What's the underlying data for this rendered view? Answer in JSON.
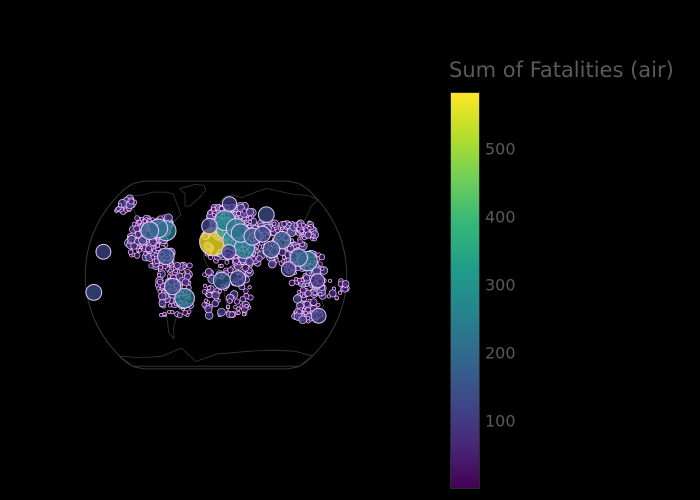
{
  "colorbar": {
    "title": "Sum of Fatalities (air)",
    "min": 0,
    "max": 583,
    "ticks": [
      "100",
      "200",
      "300",
      "400",
      "500"
    ],
    "colorscale": [
      "#440154",
      "#482878",
      "#3e4989",
      "#31688e",
      "#26828e",
      "#1f9e89",
      "#35b779",
      "#6ece58",
      "#b5de2b",
      "#fde725"
    ]
  },
  "map": {
    "projection": "natural earth",
    "background": "#000000",
    "coastline_color": "#444444",
    "marker_outline": "#e6c8ff"
  },
  "chart_data": {
    "type": "scatter",
    "projection": "natural earth",
    "size_and_color": "Sum of Fatalities (air)",
    "points": [
      {
        "lon": -3.5,
        "lat": 28.5,
        "value": 583
      },
      {
        "lon": 25,
        "lat": 30,
        "value": 290
      },
      {
        "lon": 16,
        "lat": 40,
        "value": 305
      },
      {
        "lon": 14,
        "lat": 47,
        "value": 270
      },
      {
        "lon": 40,
        "lat": 23,
        "value": 265
      },
      {
        "lon": 30,
        "lat": 40,
        "value": 240
      },
      {
        "lon": 36,
        "lat": 36,
        "value": 210
      },
      {
        "lon": -74,
        "lat": 38,
        "value": 260
      },
      {
        "lon": -86,
        "lat": 40,
        "value": 215
      },
      {
        "lon": -98,
        "lat": 38,
        "value": 185
      },
      {
        "lon": -44,
        "lat": -20,
        "value": 245
      },
      {
        "lon": -60,
        "lat": -10,
        "value": 150
      },
      {
        "lon": -70,
        "lat": 16,
        "value": 160
      },
      {
        "lon": -170,
        "lat": -15,
        "value": 140
      },
      {
        "lon": -158,
        "lat": 20,
        "value": 120
      },
      {
        "lon": 127,
        "lat": 12,
        "value": 240
      },
      {
        "lon": 95,
        "lat": 30,
        "value": 175
      },
      {
        "lon": 115,
        "lat": 15,
        "value": 180
      },
      {
        "lon": 78,
        "lat": 22,
        "value": 160
      },
      {
        "lon": 68,
        "lat": 35,
        "value": 140
      },
      {
        "lon": 53,
        "lat": 33,
        "value": 170
      },
      {
        "lon": 80,
        "lat": 52,
        "value": 140
      },
      {
        "lon": 8,
        "lat": -5,
        "value": 170
      },
      {
        "lon": 30,
        "lat": -3,
        "value": 135
      },
      {
        "lon": -10,
        "lat": 42,
        "value": 130
      },
      {
        "lon": 23,
        "lat": 62,
        "value": 110
      },
      {
        "lon": 150,
        "lat": -35,
        "value": 120
      },
      {
        "lon": 140,
        "lat": -5,
        "value": 100
      },
      {
        "lon": 100,
        "lat": 5,
        "value": 115
      },
      {
        "lon": 18,
        "lat": 20,
        "value": 110
      }
    ]
  }
}
